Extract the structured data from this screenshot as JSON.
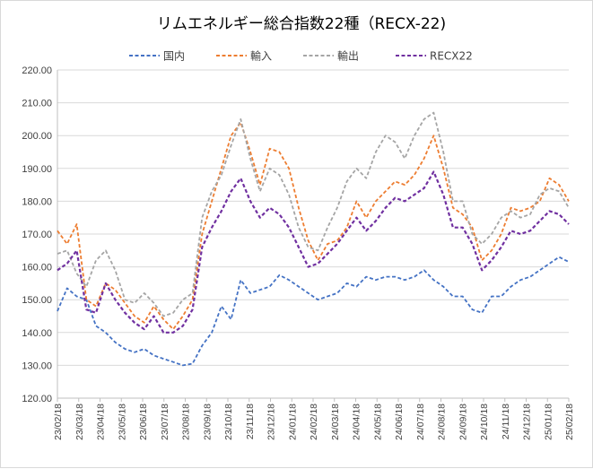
{
  "chart_data": {
    "type": "line",
    "title": "リムエネルギー総合指数22種（RECX-22)",
    "xlabel": "",
    "ylabel": "",
    "ylim": [
      120,
      220
    ],
    "yticks": [
      "120.00",
      "130.00",
      "140.00",
      "150.00",
      "160.00",
      "170.00",
      "180.00",
      "190.00",
      "200.00",
      "210.00",
      "220.00"
    ],
    "x_tick_labels": [
      "23/02/18",
      "23/03/18",
      "23/04/18",
      "23/05/18",
      "23/06/18",
      "23/07/18",
      "23/08/18",
      "23/09/18",
      "23/10/18",
      "23/11/18",
      "23/12/18",
      "24/01/18",
      "24/02/18",
      "24/03/18",
      "24/04/18",
      "24/05/18",
      "24/06/18",
      "24/07/18",
      "24/08/18",
      "24/09/18",
      "24/10/18",
      "24/11/18",
      "24/12/18",
      "25/01/18",
      "25/02/18"
    ],
    "grid": true,
    "legend_position": "top",
    "series": [
      {
        "name": "国内",
        "color": "#4472c4",
        "values": [
          146.5,
          153.5,
          151,
          150,
          142,
          140,
          137,
          135,
          134,
          135,
          133,
          132,
          131,
          130,
          130.5,
          136,
          140,
          148,
          144,
          156,
          152,
          153,
          154,
          157.5,
          156,
          154,
          152,
          150,
          151,
          152,
          155,
          154,
          157,
          156,
          157,
          157,
          156,
          157,
          159,
          156,
          154,
          151,
          151,
          147,
          146,
          151,
          151,
          154,
          156,
          157,
          159,
          161,
          163,
          161.5
        ]
      },
      {
        "name": "輸入",
        "color": "#ed7d31",
        "values": [
          171,
          167,
          173,
          150,
          148,
          155,
          153,
          149,
          145,
          143,
          148,
          144,
          141,
          145,
          150,
          170,
          180,
          190,
          200,
          204,
          195,
          185,
          196,
          195,
          190,
          178,
          168,
          162,
          167,
          168,
          172,
          180,
          175,
          180,
          183,
          186,
          185,
          188,
          193,
          200,
          190,
          178,
          176,
          172,
          162,
          165,
          170,
          178,
          177,
          178,
          180,
          187,
          185,
          180
        ]
      },
      {
        "name": "輸出",
        "color": "#a5a5a5",
        "values": [
          164,
          165,
          158,
          154,
          162,
          165,
          159,
          150,
          149,
          152,
          149,
          145,
          146,
          150,
          152,
          175,
          183,
          188,
          197,
          205,
          193,
          183,
          190,
          188,
          182,
          172,
          166,
          165,
          172,
          178,
          186,
          190,
          187,
          195,
          200,
          198,
          193,
          200,
          205,
          207,
          195,
          180,
          180,
          170,
          167,
          170,
          175,
          177,
          175,
          176,
          182,
          184,
          183,
          178
        ]
      },
      {
        "name": "RECX22",
        "color": "#7030a0",
        "values": [
          159,
          161,
          165,
          147,
          146,
          155,
          150,
          146,
          143,
          141,
          145,
          140,
          140,
          142,
          147,
          166,
          172,
          177,
          183,
          187,
          180,
          175,
          178,
          176,
          172,
          166,
          160,
          161,
          164,
          167,
          171,
          175,
          171,
          174,
          178,
          181,
          180,
          182,
          184,
          189,
          182,
          172,
          172,
          167,
          159,
          162,
          166,
          171,
          170,
          171,
          174,
          177,
          176,
          173
        ]
      }
    ]
  }
}
